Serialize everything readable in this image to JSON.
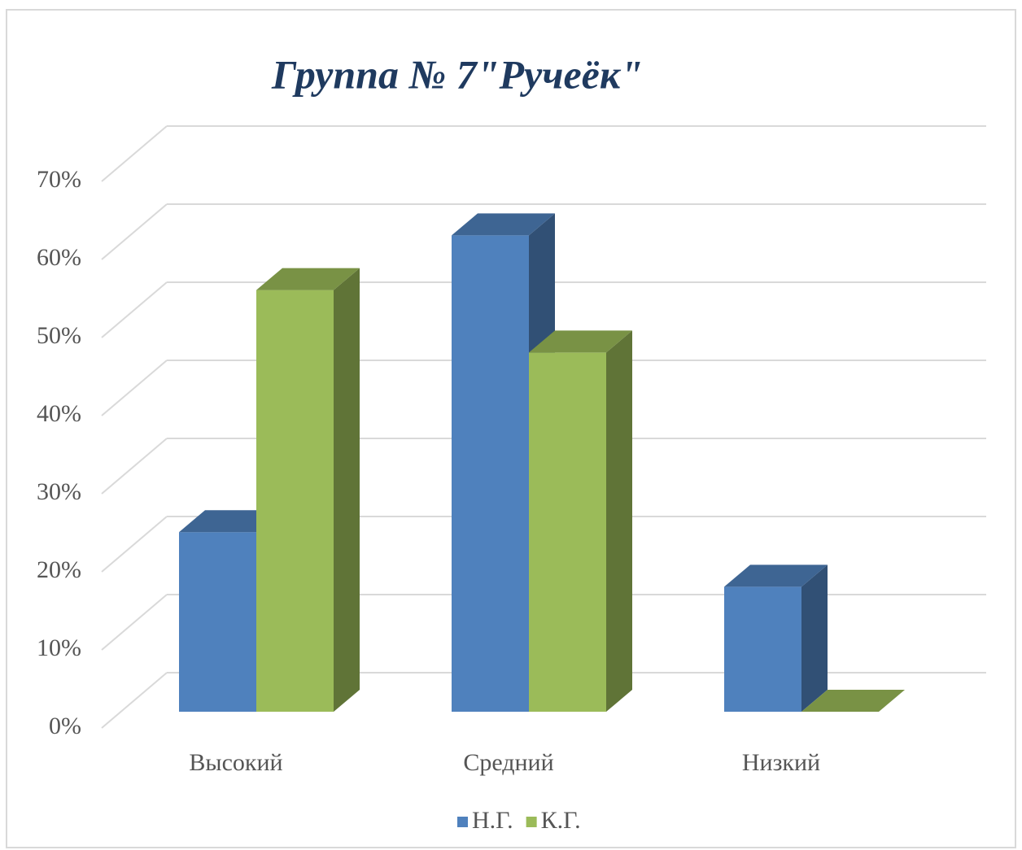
{
  "chart_data": {
    "type": "bar3d",
    "title": "Группа № 7\"Ручеёк\"",
    "categories": [
      "Высокий",
      "Средний",
      "Низкий"
    ],
    "series": [
      {
        "name": "Н.Г.",
        "color": "#4f81bd",
        "values": [
          23,
          61,
          16
        ]
      },
      {
        "name": "К.Г.",
        "color": "#9bbb59",
        "values": [
          54,
          46,
          0
        ]
      }
    ],
    "ylim": [
      0,
      70
    ],
    "yticks": [
      {
        "value": 0,
        "label": "0%"
      },
      {
        "value": 10,
        "label": "10%"
      },
      {
        "value": 20,
        "label": "20%"
      },
      {
        "value": 30,
        "label": "30%"
      },
      {
        "value": 40,
        "label": "40%"
      },
      {
        "value": 50,
        "label": "50%"
      },
      {
        "value": 60,
        "label": "60%"
      },
      {
        "value": 70,
        "label": "70%"
      }
    ],
    "grid": true,
    "legend": "bottom"
  }
}
